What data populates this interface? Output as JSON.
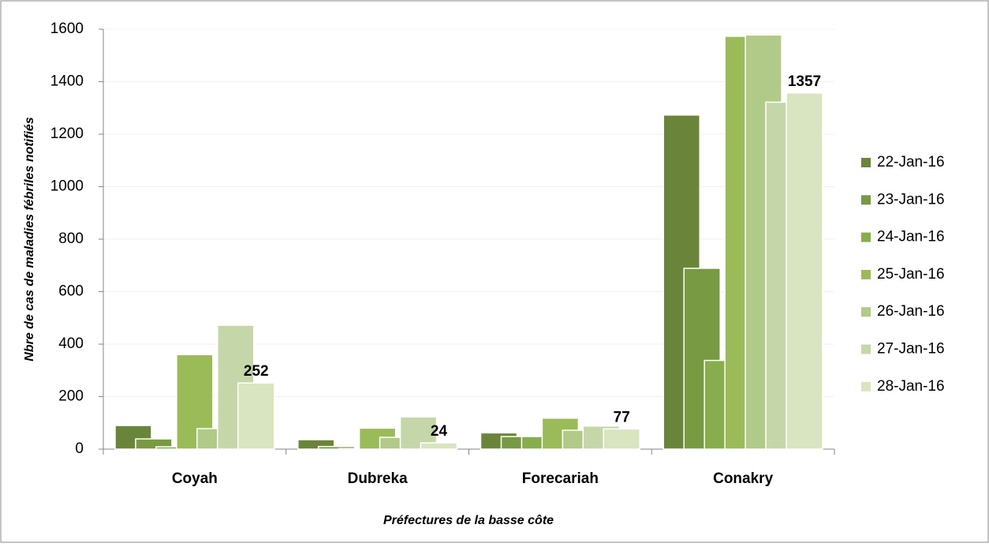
{
  "chart_data": {
    "type": "bar",
    "y_label": "Nbre de cas de maladies fébriles notifiés",
    "x_label": "Préfectures de la basse côte",
    "categories": [
      "Coyah",
      "Dubreka",
      "Forecariah",
      "Conakry"
    ],
    "series": [
      {
        "name": "22-Jan-16",
        "color": "#6a853a",
        "values": [
          90,
          36,
          62,
          1273
        ]
      },
      {
        "name": "23-Jan-16",
        "color": "#789a42",
        "values": [
          39,
          10,
          48,
          689
        ]
      },
      {
        "name": "24-Jan-16",
        "color": "#88ad4c",
        "values": [
          9,
          2,
          48,
          338
        ]
      },
      {
        "name": "25-Jan-16",
        "color": "#9bbb59",
        "values": [
          360,
          80,
          118,
          1573
        ]
      },
      {
        "name": "26-Jan-16",
        "color": "#b1ca88",
        "values": [
          78,
          45,
          72,
          1578
        ]
      },
      {
        "name": "27-Jan-16",
        "color": "#c5d7a9",
        "values": [
          472,
          123,
          88,
          1322
        ]
      },
      {
        "name": "28-Jan-16",
        "color": "#d8e5c0",
        "values": [
          252,
          24,
          77,
          1357
        ],
        "show_labels": true
      }
    ],
    "ylim": [
      0,
      1600
    ],
    "yticks": [
      0,
      200,
      400,
      600,
      800,
      1000,
      1200,
      1400,
      1600
    ],
    "grid": true
  }
}
